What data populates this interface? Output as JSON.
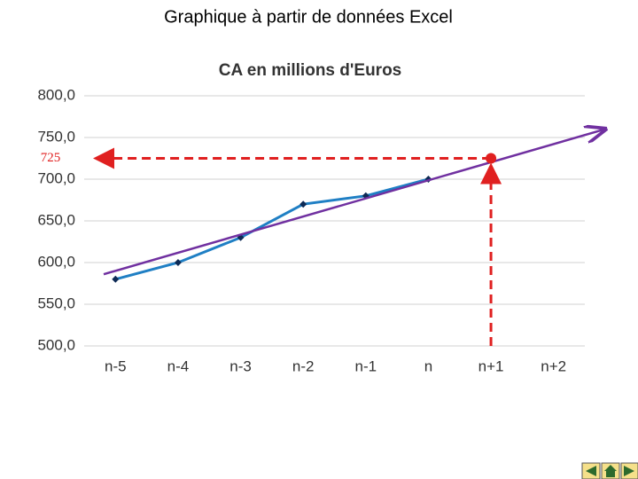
{
  "page_title": "Graphique à partir de données Excel",
  "chart_data": {
    "type": "line",
    "title": "CA en millions d'Euros",
    "categories": [
      "n-5",
      "n-4",
      "n-3",
      "n-2",
      "n-1",
      "n",
      "n+1",
      "n+2"
    ],
    "series": [
      {
        "name": "CA",
        "color": "#1f7fc4",
        "values": [
          580,
          600,
          630,
          670,
          680,
          700,
          null,
          null
        ]
      }
    ],
    "trendline": {
      "color": "#7030a0",
      "values": [
        586,
        760
      ]
    },
    "annotation": {
      "label": "725",
      "value": 725,
      "category": "n+1",
      "color": "#e02020"
    },
    "ylim": [
      500,
      800
    ],
    "yticks": [
      {
        "value": 500,
        "label": "500,0"
      },
      {
        "value": 550,
        "label": "550,0"
      },
      {
        "value": 600,
        "label": "600,0"
      },
      {
        "value": 650,
        "label": "650,0"
      },
      {
        "value": 700,
        "label": "700,0"
      },
      {
        "value": 750,
        "label": "750,0"
      },
      {
        "value": 800,
        "label": "800,0"
      }
    ],
    "grid": true
  }
}
